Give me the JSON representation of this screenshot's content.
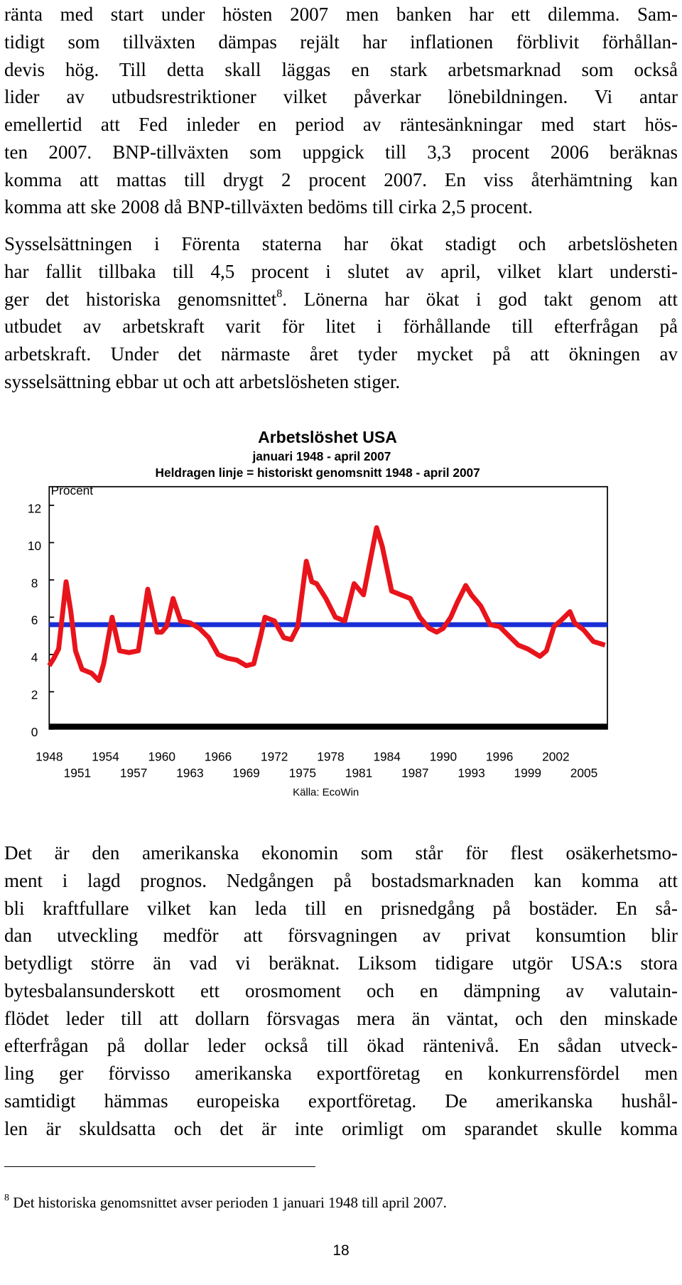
{
  "paragraphs": [
    [
      "ränta med start under hösten 2007 men banken har ett dilemma. Sam-",
      "tidigt som tillväxten dämpas rejält har inflationen förblivit förhållan-",
      "devis hög. Till detta skall läggas en stark arbetsmarknad som också",
      "lider av utbudsrestriktioner vilket påverkar lönebildningen. Vi antar",
      "emellertid att Fed inleder en period av räntesänkningar med start hös-",
      "ten 2007. BNP-tillväxten som uppgick till 3,3 procent 2006 beräknas",
      "komma att mattas till drygt 2 procent 2007. En viss återhämtning kan",
      "komma att ske 2008 då BNP-tillväxten bedöms till cirka 2,5 procent."
    ],
    [
      "Sysselsättningen i Förenta staterna har ökat stadigt och arbetslösheten",
      "har fallit tillbaka till 4,5 procent i slutet av april, vilket klart understi-",
      {
        "before": "ger det historiska genomsnittet",
        "sup": "8",
        "after": ". Lönerna har ökat i god takt genom att"
      },
      "utbudet av arbetskraft varit för litet i förhållande till efterfrågan på",
      "arbetskraft. Under det närmaste året tyder mycket på att ökningen av",
      "sysselsättning ebbar ut och att arbetslösheten stiger."
    ],
    [
      "Det är den amerikanska ekonomin som står för flest osäkerhetsmo-",
      "ment i lagd prognos. Nedgången på bostadsmarknaden kan komma att",
      "bli kraftfullare vilket kan leda till en prisnedgång på bostäder. En så-",
      "dan utveckling medför att försvagningen av privat konsumtion blir",
      "betydligt större än vad vi beräknat. Liksom tidigare utgör USA:s stora",
      "bytesbalansunderskott ett orosmoment och en dämpning av valutain-",
      "flödet leder till att dollarn försvagas mera än väntat, och den minskade",
      "efterfrågan på dollar leder också till ökad räntenivå. En sådan utveck-",
      "ling ger förvisso amerikanska exportföretag en konkurrensfördel men",
      "samtidigt hämmas europeiska exportföretag. De amerikanska hushål-",
      "len är skuldsatta och det är inte orimligt om sparandet skulle komma"
    ]
  ],
  "chart_data": {
    "type": "line",
    "title": "Arbetslöshet USA",
    "subtitle": "januari 1948 - april 2007",
    "annotation": "Heldragen linje = historiskt genomsnitt 1948 - april 2007",
    "y_label": "Procent",
    "source": "Källa: EcoWin",
    "xlim": [
      1948,
      2007.5
    ],
    "xticks": [
      1948,
      1951,
      1954,
      1957,
      1960,
      1963,
      1966,
      1969,
      1972,
      1975,
      1978,
      1981,
      1984,
      1987,
      1990,
      1993,
      1996,
      1999,
      2002,
      2005
    ],
    "ylim": [
      0,
      13
    ],
    "yticks": [
      0,
      2,
      4,
      6,
      8,
      10,
      12
    ],
    "series": [
      {
        "color": "#e8141c",
        "x": [
          1948.0,
          1948.5,
          1949.0,
          1949.8,
          1950.3,
          1950.8,
          1951.5,
          1952.5,
          1953.3,
          1953.8,
          1954.7,
          1955.5,
          1956.5,
          1957.5,
          1958.5,
          1959.5,
          1960.0,
          1960.5,
          1961.2,
          1962.0,
          1963.0,
          1964.0,
          1965.0,
          1966.0,
          1967.0,
          1968.0,
          1969.0,
          1969.8,
          1970.5,
          1971.0,
          1972.0,
          1973.0,
          1973.8,
          1974.5,
          1975.4,
          1976.0,
          1976.5,
          1977.5,
          1978.5,
          1979.5,
          1980.5,
          1981.0,
          1981.5,
          1982.9,
          1983.5,
          1984.5,
          1985.5,
          1986.5,
          1987.5,
          1988.5,
          1989.3,
          1990.0,
          1990.8,
          1991.5,
          1992.4,
          1993.0,
          1994.0,
          1995.0,
          1996.0,
          1997.0,
          1998.0,
          1999.0,
          2000.3,
          2001.0,
          2001.8,
          2002.5,
          2003.5,
          2004.0,
          2005.0,
          2006.0,
          2007.25
        ],
        "values": [
          3.4,
          3.8,
          4.3,
          7.9,
          6.3,
          4.2,
          3.2,
          3.0,
          2.6,
          3.5,
          6.0,
          4.2,
          4.1,
          4.2,
          7.5,
          5.2,
          5.2,
          5.5,
          7.0,
          5.8,
          5.7,
          5.4,
          4.9,
          4.0,
          3.8,
          3.7,
          3.4,
          3.5,
          4.9,
          6.0,
          5.8,
          4.9,
          4.8,
          5.5,
          9.0,
          7.9,
          7.8,
          7.0,
          6.0,
          5.8,
          7.8,
          7.5,
          7.2,
          10.8,
          9.8,
          7.4,
          7.2,
          7.0,
          6.0,
          5.4,
          5.2,
          5.4,
          6.0,
          6.8,
          7.7,
          7.2,
          6.6,
          5.6,
          5.5,
          5.0,
          4.5,
          4.3,
          3.9,
          4.2,
          5.5,
          5.8,
          6.3,
          5.7,
          5.3,
          4.7,
          4.5
        ]
      },
      {
        "color": "#1a2ed6",
        "x": [
          1948.0,
          2007.5
        ],
        "values": [
          5.6,
          5.6
        ]
      }
    ]
  },
  "footnote": {
    "mark": "8",
    "text": "Det historiska genomsnittet avser perioden 1 januari 1948 till april 2007."
  },
  "page_number": "18"
}
